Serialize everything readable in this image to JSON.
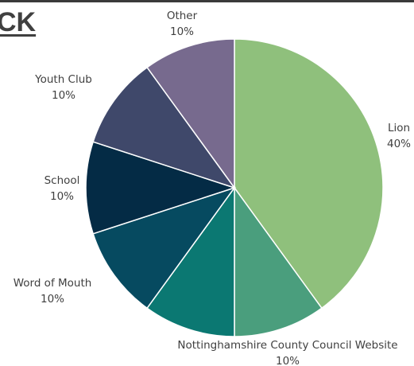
{
  "header": {
    "title_fragment": "CK"
  },
  "chart_data": {
    "type": "pie",
    "slices": [
      {
        "label": "Lion",
        "value": 40,
        "percent_label": "40%",
        "color": "#8fc07c"
      },
      {
        "label": "Nottinghamshire County Council Website",
        "value": 10,
        "percent_label": "10%",
        "color": "#4a9e7d"
      },
      {
        "label": "",
        "value": 10,
        "percent_label": "",
        "color": "#0b7872"
      },
      {
        "label": "Word of Mouth",
        "value": 10,
        "percent_label": "10%",
        "color": "#064a60"
      },
      {
        "label": "School",
        "value": 10,
        "percent_label": "10%",
        "color": "#042b45"
      },
      {
        "label": "Youth Club",
        "value": 10,
        "percent_label": "10%",
        "color": "#3f486a"
      },
      {
        "label": "Other",
        "value": 10,
        "percent_label": "10%",
        "color": "#776a8e"
      }
    ]
  }
}
